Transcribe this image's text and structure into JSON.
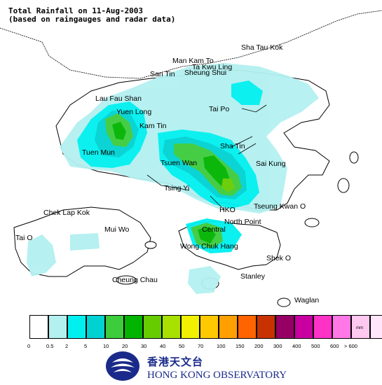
{
  "title": {
    "line1": "Total Rainfall on 11-Aug-2003",
    "line2": "(based on raingauges and radar data)"
  },
  "places": [
    {
      "id": "sha-tau-kok",
      "name": "Sha Tau Kok"
    },
    {
      "id": "man-kam-to",
      "name": "Man Kam To"
    },
    {
      "id": "ta-kwu-ling",
      "name": "Ta Kwu Ling"
    },
    {
      "id": "san-tin",
      "name": "San Tin"
    },
    {
      "id": "sheung-shui",
      "name": "Sheung Shui"
    },
    {
      "id": "lau-fau-shan",
      "name": "Lau Fau Shan"
    },
    {
      "id": "yuen-long",
      "name": "Yuen Long"
    },
    {
      "id": "kam-tin",
      "name": "Kam Tin"
    },
    {
      "id": "tai-po",
      "name": "Tai Po"
    },
    {
      "id": "tuen-mun",
      "name": "Tuen Mun"
    },
    {
      "id": "sha-tin",
      "name": "Sha Tin"
    },
    {
      "id": "tsuen-wan",
      "name": "Tsuen Wan"
    },
    {
      "id": "sai-kung",
      "name": "Sai Kung"
    },
    {
      "id": "tsing-yi",
      "name": "Tsing Yi"
    },
    {
      "id": "chek-lap-kok",
      "name": "Chek Lap Kok"
    },
    {
      "id": "hko",
      "name": "HKO"
    },
    {
      "id": "tseung-kwan-o",
      "name": "Tseung Kwan O"
    },
    {
      "id": "mui-wo",
      "name": "Mui Wo"
    },
    {
      "id": "central",
      "name": "Central"
    },
    {
      "id": "north-point",
      "name": "North Point"
    },
    {
      "id": "tai-o",
      "name": "Tai O"
    },
    {
      "id": "wong-chuk-hang",
      "name": "Wong Chuk Hang"
    },
    {
      "id": "shek-o",
      "name": "Shek O"
    },
    {
      "id": "stanley",
      "name": "Stanley"
    },
    {
      "id": "cheung-chau",
      "name": "Cheung Chau"
    },
    {
      "id": "waglan",
      "name": "Waglan"
    }
  ],
  "legend": {
    "unit": "mm",
    "ticks": [
      "0",
      "0.5",
      "2",
      "5",
      "10",
      "20",
      "30",
      "40",
      "50",
      "70",
      "100",
      "150",
      "200",
      "300",
      "400",
      "500",
      "600",
      "> 600"
    ],
    "colors": [
      "#ffffff",
      "#b3f0f0",
      "#00f0f0",
      "#00d2d2",
      "#3ccc3c",
      "#00b400",
      "#66cc00",
      "#a8e000",
      "#f0f000",
      "#ffc800",
      "#ffa000",
      "#ff6400",
      "#c83200",
      "#960064",
      "#c800a0",
      "#ff32c8",
      "#ff78e6",
      "#ffc8f0",
      "#ffe6fa"
    ]
  },
  "logo": {
    "chinese": "香港天文台",
    "english": "HONG KONG OBSERVATORY",
    "brand_color": "#1a2a8a"
  }
}
